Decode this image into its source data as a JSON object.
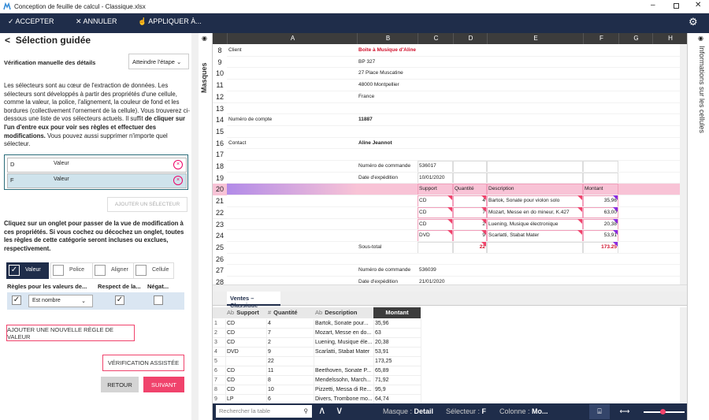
{
  "window": {
    "title": "Conception de feuille de calcul - Classique.xlsx"
  },
  "toolbar": {
    "accept": "ACCEPTER",
    "cancel": "ANNULER",
    "apply": "APPLIQUER À..."
  },
  "panel": {
    "title": "Sélection guidée",
    "check_label": "Vérification manuelle des détails",
    "step_dropdown": "Atteindre l'étape",
    "intro": [
      {
        "text": "Les sélecteurs sont au cœur de l'extraction de données. Les sélecteurs sont développés à partir des propriétés d'une cellule, comme la valeur, la police, l'alignement, la couleur de fond et les bordures (collectivement l'ornement de la cellule). Vous trouverez ci-dessous une liste de vos sélecteurs actuels. Il suffit ",
        "bold": false
      },
      {
        "text": "de cliquer sur l'un d'entre eux pour voir ses règles et effectuer des modifications.",
        "bold": true
      },
      {
        "text": " Vous pouvez aussi supprimer n'importe quel sélecteur.",
        "bold": false
      }
    ],
    "selectors": [
      {
        "column": "D",
        "name": "Valeur"
      },
      {
        "column": "F",
        "name": "Valeur"
      }
    ],
    "add_selector": "AJOUTER UN SÉLECTEUR",
    "instructions": "Cliquez sur un onglet pour passer de la vue de modification à ces propriétés. Si vous cochez ou décochez un onglet, toutes les règles de cette catégorie seront incluses ou exclues, respectivement.",
    "tabs": [
      {
        "label": "Valeur",
        "checked": true
      },
      {
        "label": "Police",
        "checked": false
      },
      {
        "label": "Aligner",
        "checked": false
      },
      {
        "label": "Cellule",
        "checked": false
      }
    ],
    "rule_headers": [
      "Règles pour les valeurs de...",
      "Respect de la...",
      "Négat..."
    ],
    "rule_condition": "Est nombre",
    "add_rule": "AJOUTER UNE NOUVELLE RÈGLE DE VALEUR",
    "verify": "VÉRIFICATION ASSISTÉE",
    "back": "RETOUR",
    "next": "SUIVANT"
  },
  "side_labels": {
    "masks": "Masques",
    "cell_info": "Informations sur les cellules"
  },
  "sheet": {
    "columns": [
      "A",
      "B",
      "C",
      "D",
      "E",
      "F",
      "G",
      "H"
    ],
    "rows": [
      {
        "number": 8,
        "cells": [
          {
            "column": "A",
            "text": "Client"
          },
          {
            "column": "B",
            "text": "Boite à Musique d'Aline",
            "style": "bold-red"
          }
        ]
      },
      {
        "number": 9,
        "cells": [
          {
            "column": "B",
            "text": "BP 327"
          }
        ]
      },
      {
        "number": 10,
        "cells": [
          {
            "column": "B",
            "text": "27 Place Muscatine"
          }
        ]
      },
      {
        "number": 11,
        "cells": [
          {
            "column": "B",
            "text": "48000 Montpellier"
          }
        ]
      },
      {
        "number": 12,
        "cells": [
          {
            "column": "B",
            "text": "France"
          }
        ]
      },
      {
        "number": 13,
        "cells": []
      },
      {
        "number": 14,
        "cells": [
          {
            "column": "A",
            "text": "Numéro de compte"
          },
          {
            "column": "B",
            "text": "11887",
            "style": "bold"
          }
        ]
      },
      {
        "number": 15,
        "cells": []
      },
      {
        "number": 16,
        "cells": [
          {
            "column": "A",
            "text": "Contact"
          },
          {
            "column": "B",
            "text": "Aline Jeannot",
            "style": "bold"
          }
        ]
      },
      {
        "number": 17,
        "cells": []
      },
      {
        "number": 18,
        "cells": [
          {
            "column": "B",
            "text": "Numéro de commande"
          },
          {
            "column": "C",
            "text": "536017"
          }
        ]
      },
      {
        "number": 19,
        "cells": [
          {
            "column": "B",
            "text": "Date d'expédition"
          },
          {
            "column": "C",
            "text": "10/01/2020"
          }
        ]
      },
      {
        "number": 20,
        "cells": [
          {
            "column": "C",
            "text": "Support"
          },
          {
            "column": "D",
            "text": "Quantité"
          },
          {
            "column": "E",
            "text": "Description"
          },
          {
            "column": "F",
            "text": "Montant"
          }
        ]
      },
      {
        "number": 21,
        "cells": [
          {
            "column": "C",
            "text": "CD"
          },
          {
            "column": "D",
            "text": "4"
          },
          {
            "column": "E",
            "text": "Bartok, Sonate pour violon solo"
          },
          {
            "column": "F",
            "text": "35,96"
          }
        ]
      },
      {
        "number": 22,
        "cells": [
          {
            "column": "C",
            "text": "CD"
          },
          {
            "column": "D",
            "text": "7"
          },
          {
            "column": "E",
            "text": "Mozart, Messe en do mineur, K.427"
          },
          {
            "column": "F",
            "text": "63,00"
          }
        ]
      },
      {
        "number": 23,
        "cells": [
          {
            "column": "C",
            "text": "CD"
          },
          {
            "column": "D",
            "text": "2"
          },
          {
            "column": "E",
            "text": "Luening, Musique électronique"
          },
          {
            "column": "F",
            "text": "20,38"
          }
        ]
      },
      {
        "number": 24,
        "cells": [
          {
            "column": "C",
            "text": "DVD"
          },
          {
            "column": "D",
            "text": "9"
          },
          {
            "column": "E",
            "text": "Scarlatti, Stabat Mater"
          },
          {
            "column": "F",
            "text": "53,91"
          }
        ]
      },
      {
        "number": 25,
        "cells": [
          {
            "column": "B",
            "text": "Sous-total"
          },
          {
            "column": "D",
            "text": "22",
            "style": "bold-red"
          },
          {
            "column": "F",
            "text": "173.25",
            "style": "bold-red"
          }
        ]
      },
      {
        "number": 26,
        "cells": []
      },
      {
        "number": 27,
        "cells": [
          {
            "column": "B",
            "text": "Numéro de commande"
          },
          {
            "column": "C",
            "text": "536039"
          }
        ]
      },
      {
        "number": 28,
        "cells": [
          {
            "column": "B",
            "text": "Date d'expédition"
          },
          {
            "column": "C",
            "text": "21/01/2020"
          }
        ]
      }
    ],
    "tab": "Ventes – Classique"
  },
  "preview": {
    "headers": [
      {
        "type": "Ab",
        "label": "Support"
      },
      {
        "type": "#",
        "label": "Quantité"
      },
      {
        "type": "Ab",
        "label": "Description"
      },
      {
        "type": null,
        "label": "Montant"
      }
    ],
    "rows": [
      {
        "number": 1,
        "cells": [
          "CD",
          "4",
          "Bartok, Sonate pour...",
          "35,96"
        ]
      },
      {
        "number": 2,
        "cells": [
          "CD",
          "7",
          "Mozart, Messe en do...",
          "63"
        ]
      },
      {
        "number": 3,
        "cells": [
          "CD",
          "2",
          "Luening, Musique éle...",
          "20,38"
        ]
      },
      {
        "number": 4,
        "cells": [
          "DVD",
          "9",
          "Scarlatti, Stabat Mater",
          "53,91"
        ]
      },
      {
        "number": 5,
        "cells": [
          null,
          "22",
          null,
          "173,25"
        ]
      },
      {
        "number": 6,
        "cells": [
          "CD",
          "11",
          "Beethoven, Sonate P...",
          "65,89"
        ]
      },
      {
        "number": 7,
        "cells": [
          "CD",
          "8",
          "Mendelssohn, March...",
          "71,92"
        ]
      },
      {
        "number": 8,
        "cells": [
          "CD",
          "10",
          "Pizzetti, Messa di Re...",
          "95,9"
        ]
      },
      {
        "number": 9,
        "cells": [
          "LP",
          "6",
          "Divers, Trombone mo...",
          "64,74"
        ]
      }
    ]
  },
  "status": {
    "search": "Rechercher la table",
    "mask_label": "Masque :",
    "mask": "Detail",
    "selector_label": "Sélecteur :",
    "selector": "F",
    "column_label": "Colonne :",
    "column": "Mo..."
  }
}
